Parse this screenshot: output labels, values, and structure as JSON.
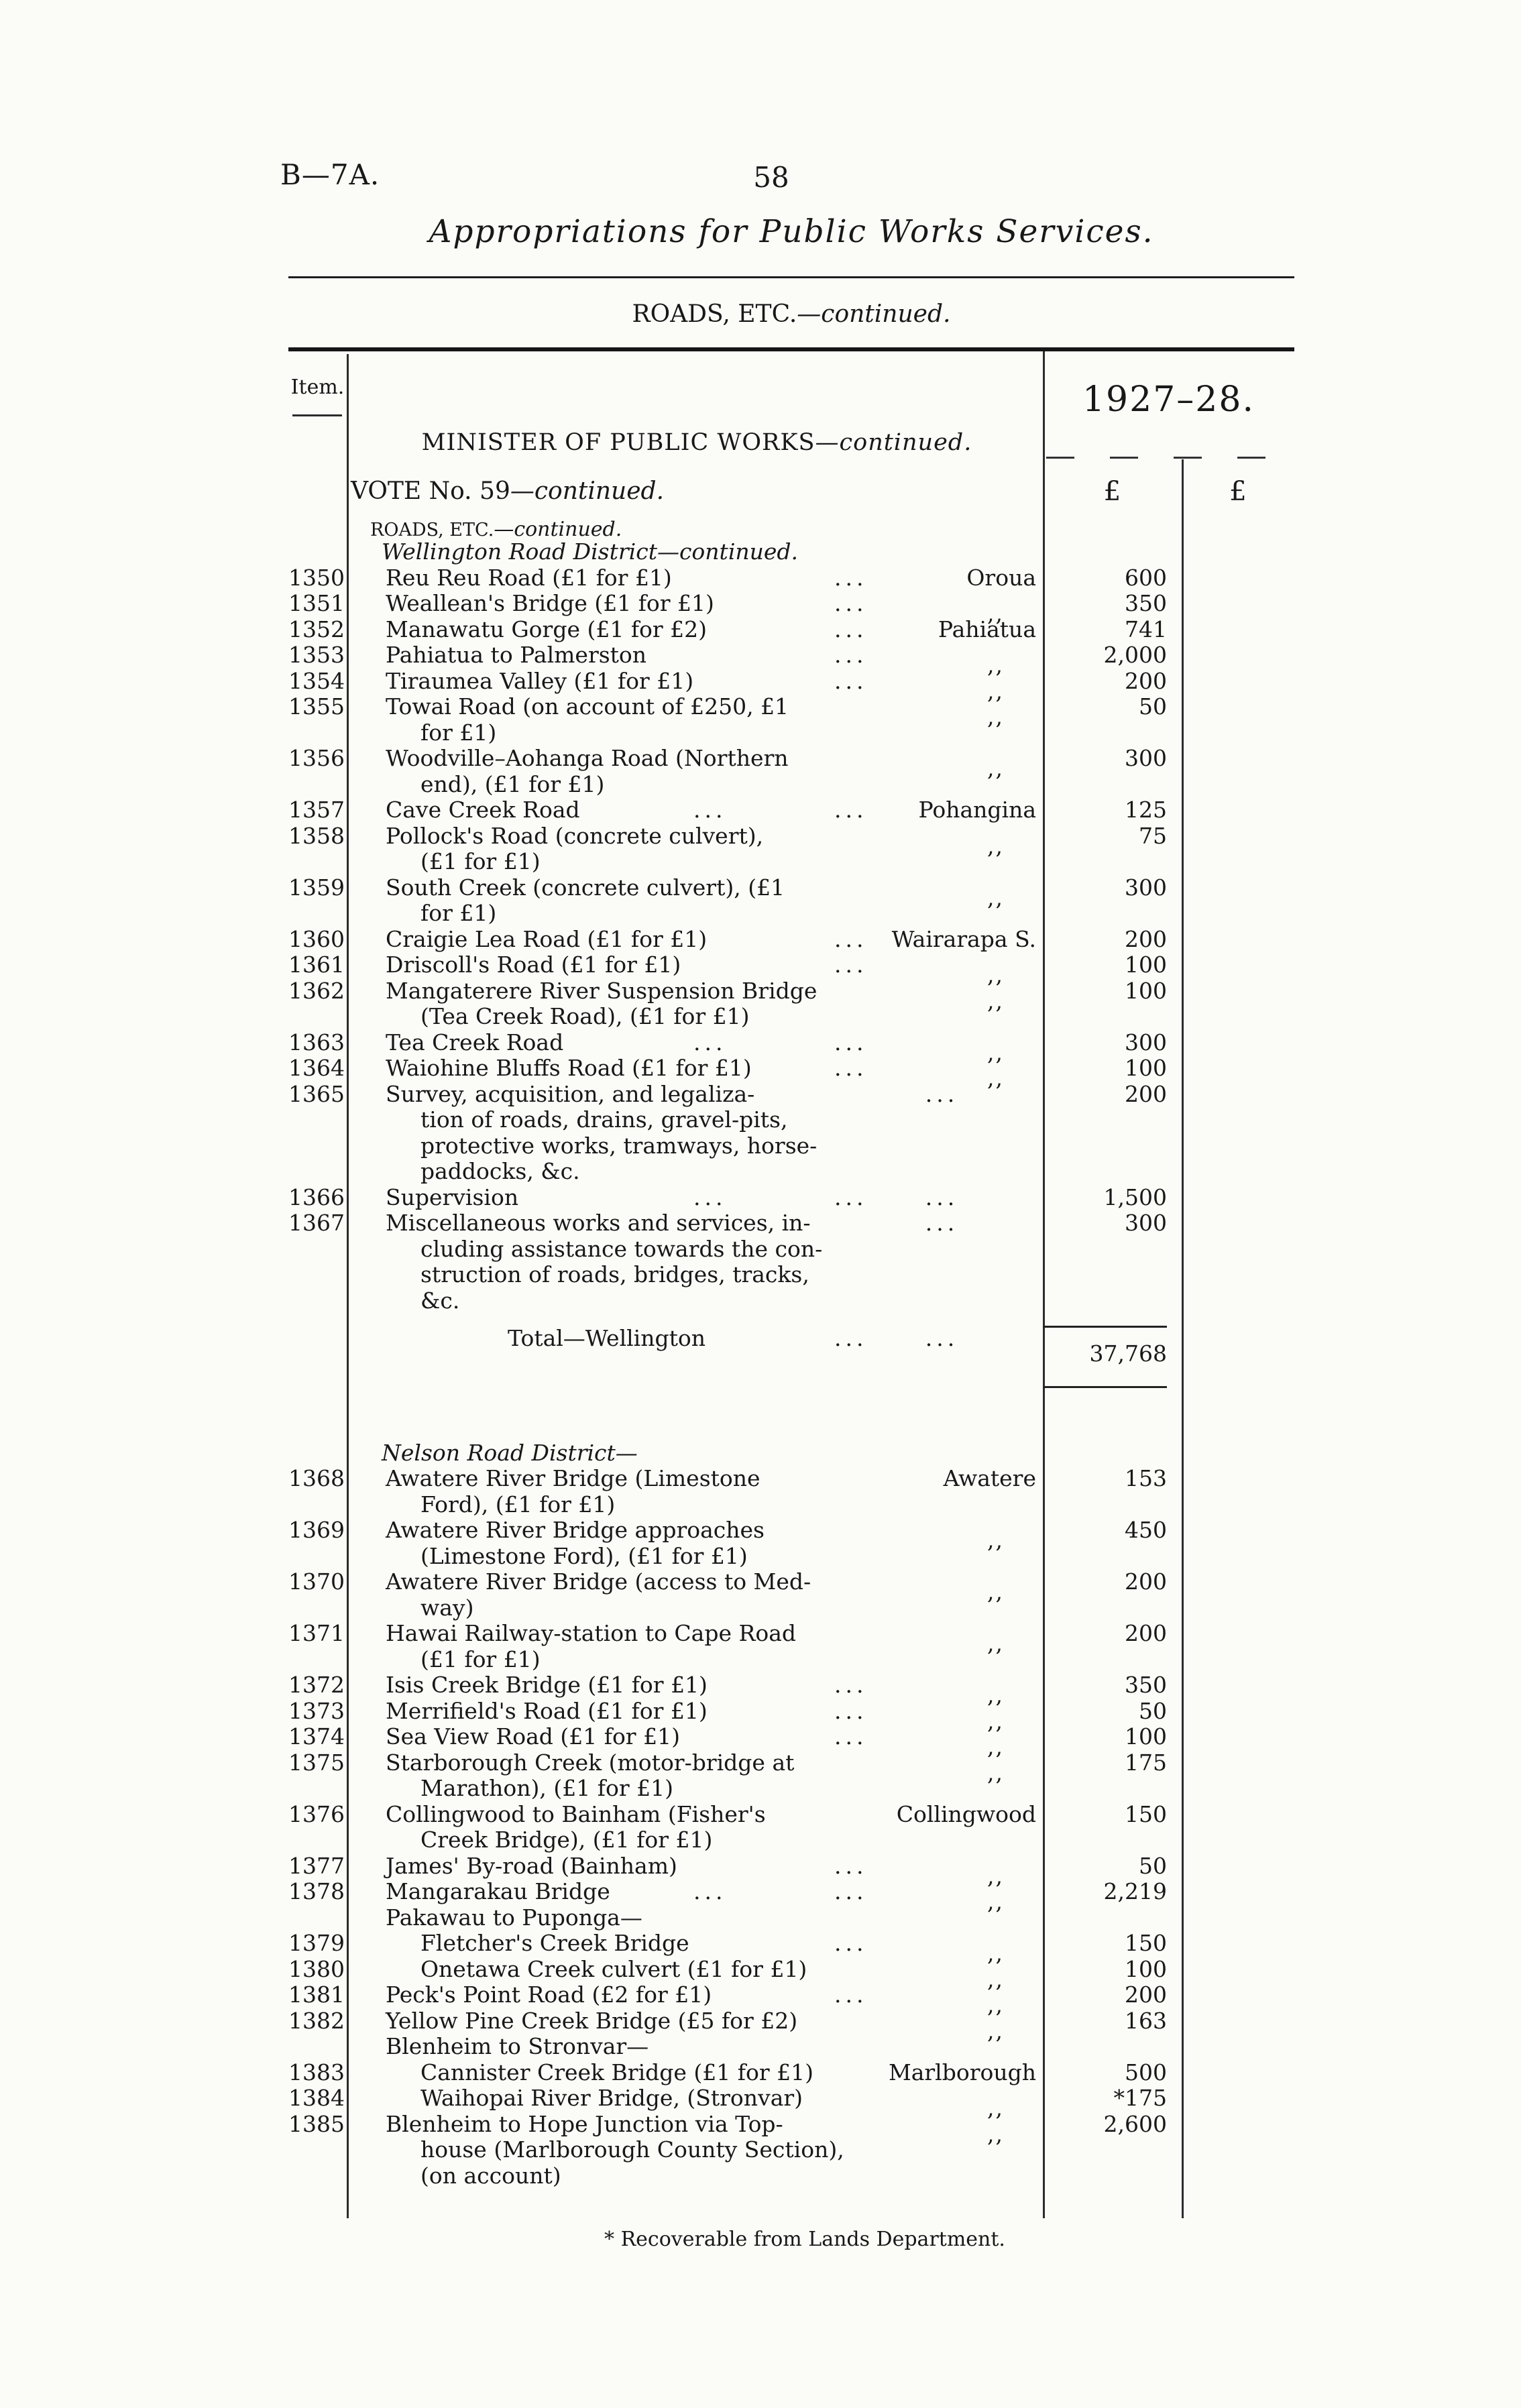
{
  "page": {
    "doc_ref": "B—7A.",
    "page_number": "58",
    "title": "Appropriations for Public Works Services.",
    "section_roman": "ROADS, ETC.",
    "section_italic": "—continued."
  },
  "table": {
    "item_header": "Item.",
    "year_header": "1927–28.",
    "minister_roman": "MINISTER OF PUBLIC WORKS",
    "minister_italic": "—continued.",
    "vote_roman": "VOTE No. 59",
    "vote_italic": "—continued.",
    "roads_roman": "ROADS, ETC.",
    "roads_italic": "—continued.",
    "currency_col1": "£",
    "currency_col2": "£",
    "footnote": "* Recoverable from Lands Department.",
    "rows": [
      {
        "type": "district",
        "text": "Wellington Road District—continued."
      },
      {
        "type": "item",
        "item": "1350",
        "lines": [
          "Reu Reu Road (£1 for £1)"
        ],
        "dots": 1,
        "loc": "Oroua",
        "amt": "600"
      },
      {
        "type": "item",
        "item": "1351",
        "lines": [
          "Weallean's Bridge (£1 for £1)"
        ],
        "dots": 1,
        "loc": ",,",
        "amt": "350"
      },
      {
        "type": "item",
        "item": "1352",
        "lines": [
          "Manawatu Gorge (£1 for £2)"
        ],
        "dots": 1,
        "loc": "Pahiatua",
        "amt": "741"
      },
      {
        "type": "item",
        "item": "1353",
        "lines": [
          "Pahiatua to Palmerston"
        ],
        "dots": 1,
        "loc": ",,",
        "amt": "2,000"
      },
      {
        "type": "item",
        "item": "1354",
        "lines": [
          "Tiraumea Valley (£1 for £1)"
        ],
        "dots": 1,
        "loc": ",,",
        "amt": "200"
      },
      {
        "type": "item",
        "item": "1355",
        "lines": [
          "Towai Road (on account of £250, £1",
          "for £1)"
        ],
        "dots": 0,
        "loc": ",,",
        "amt": "50"
      },
      {
        "type": "item",
        "item": "1356",
        "lines": [
          "Woodville–Aohanga Road (Northern",
          "end), (£1 for £1)"
        ],
        "dots": 0,
        "loc": ",,",
        "amt": "300"
      },
      {
        "type": "item",
        "item": "1357",
        "lines": [
          "Cave Creek Road"
        ],
        "dots": 2,
        "loc": "Pohangina",
        "amt": "125"
      },
      {
        "type": "item",
        "item": "1358",
        "lines": [
          "Pollock's Road (concrete culvert),",
          "(£1 for £1)"
        ],
        "dots": 0,
        "loc": ",,",
        "amt": "75"
      },
      {
        "type": "item",
        "item": "1359",
        "lines": [
          "South Creek (concrete culvert), (£1",
          "for £1)"
        ],
        "dots": 0,
        "loc": ",,",
        "amt": "300"
      },
      {
        "type": "item",
        "item": "1360",
        "lines": [
          "Craigie Lea Road (£1 for £1)"
        ],
        "dots": 1,
        "loc": "Wairarapa S.",
        "amt": "200"
      },
      {
        "type": "item",
        "item": "1361",
        "lines": [
          "Driscoll's Road (£1 for £1)"
        ],
        "dots": 1,
        "loc": ",,",
        "amt": "100"
      },
      {
        "type": "item",
        "item": "1362",
        "lines": [
          "Mangaterere River Suspension Bridge",
          "(Tea Creek Road), (£1 for £1)"
        ],
        "dots": 0,
        "loc": ",,",
        "amt": "100"
      },
      {
        "type": "item",
        "item": "1363",
        "lines": [
          "Tea Creek Road"
        ],
        "dots": 2,
        "loc": ",,",
        "amt": "300"
      },
      {
        "type": "item",
        "item": "1364",
        "lines": [
          "Waiohine Bluffs Road (£1 for £1)"
        ],
        "dots": 1,
        "loc": ",,",
        "amt": "100"
      },
      {
        "type": "item",
        "item": "1365",
        "lines": [
          "Survey, acquisition, and legaliza-",
          "tion of roads, drains, gravel-pits,",
          "protective works, tramways, horse-",
          "paddocks, &c."
        ],
        "dots": 0,
        "loc": "...",
        "amt": "200"
      },
      {
        "type": "item",
        "item": "1366",
        "lines": [
          "Supervision"
        ],
        "dots": 2,
        "loc": "...",
        "amt": "1,500"
      },
      {
        "type": "item",
        "item": "1367",
        "lines": [
          "Miscellaneous works and services, in-",
          "cluding assistance towards the con-",
          "struction of roads, bridges, tracks,",
          "&c."
        ],
        "dots": 0,
        "loc": "...",
        "amt": "300"
      },
      {
        "type": "total",
        "label": "Total—Wellington",
        "dots": 1,
        "loc": "...",
        "amt": "37,768"
      },
      {
        "type": "spacer"
      },
      {
        "type": "district",
        "text": "Nelson Road District—"
      },
      {
        "type": "item",
        "item": "1368",
        "lines": [
          "Awatere River Bridge (Limestone",
          "Ford), (£1 for £1)"
        ],
        "dots": 0,
        "loc": "Awatere",
        "amt": "153"
      },
      {
        "type": "item",
        "item": "1369",
        "lines": [
          "Awatere River Bridge approaches",
          "(Limestone Ford), (£1 for £1)"
        ],
        "dots": 0,
        "loc": ",,",
        "amt": "450"
      },
      {
        "type": "item",
        "item": "1370",
        "lines": [
          "Awatere River Bridge (access to Med-",
          "way)"
        ],
        "dots": 0,
        "loc": ",,",
        "amt": "200"
      },
      {
        "type": "item",
        "item": "1371",
        "lines": [
          "Hawai Railway-station to Cape Road",
          "(£1 for £1)"
        ],
        "dots": 0,
        "loc": ",,",
        "amt": "200"
      },
      {
        "type": "item",
        "item": "1372",
        "lines": [
          "Isis Creek Bridge (£1 for £1)"
        ],
        "dots": 1,
        "loc": ",,",
        "amt": "350"
      },
      {
        "type": "item",
        "item": "1373",
        "lines": [
          "Merrifield's Road (£1 for £1)"
        ],
        "dots": 1,
        "loc": ",,",
        "amt": "50"
      },
      {
        "type": "item",
        "item": "1374",
        "lines": [
          "Sea View Road (£1 for £1)"
        ],
        "dots": 1,
        "loc": ",,",
        "amt": "100"
      },
      {
        "type": "item",
        "item": "1375",
        "lines": [
          "Starborough Creek (motor-bridge at",
          "Marathon), (£1 for £1)"
        ],
        "dots": 0,
        "loc": ",,",
        "amt": "175"
      },
      {
        "type": "item",
        "item": "1376",
        "lines": [
          "Collingwood to Bainham (Fisher's",
          "Creek Bridge), (£1 for £1)"
        ],
        "dots": 0,
        "loc": "Collingwood",
        "amt": "150"
      },
      {
        "type": "item",
        "item": "1377",
        "lines": [
          "James' By-road (Bainham)"
        ],
        "dots": 1,
        "loc": ",,",
        "amt": "50"
      },
      {
        "type": "item",
        "item": "1378",
        "lines": [
          "Mangarakau Bridge"
        ],
        "dots": 2,
        "loc": ",,",
        "amt": "2,219"
      },
      {
        "type": "sub",
        "text": "Pakawau to Puponga—"
      },
      {
        "type": "item",
        "item": "1379",
        "indent": "g",
        "lines": [
          "Fletcher's Creek Bridge"
        ],
        "dots": 1,
        "loc": ",,",
        "amt": "150"
      },
      {
        "type": "item",
        "item": "1380",
        "indent": "g",
        "lines": [
          "Onetawa Creek culvert (£1 for £1)"
        ],
        "dots": 0,
        "loc": ",,",
        "amt": "100"
      },
      {
        "type": "item",
        "item": "1381",
        "lines": [
          "Peck's Point Road (£2 for £1)"
        ],
        "dots": 1,
        "loc": ",,",
        "amt": "200"
      },
      {
        "type": "item",
        "item": "1382",
        "lines": [
          "Yellow Pine Creek Bridge (£5 for £2)"
        ],
        "dots": 0,
        "loc": ",,",
        "amt": "163"
      },
      {
        "type": "sub",
        "text": "Blenheim to Stronvar—"
      },
      {
        "type": "item",
        "item": "1383",
        "indent": "g",
        "lines": [
          "Cannister Creek Bridge (£1 for £1)"
        ],
        "dots": 0,
        "loc": "Marlborough",
        "amt": "500"
      },
      {
        "type": "item",
        "item": "1384",
        "indent": "g",
        "lines": [
          "Waihopai River Bridge, (Stronvar)"
        ],
        "dots": 0,
        "loc": ",,",
        "amt": "*175"
      },
      {
        "type": "item",
        "item": "1385",
        "lines": [
          "Blenheim to Hope Junction via Top-",
          "house (Marlborough County Section),",
          "(on account)"
        ],
        "dots": 0,
        "loc": ",,",
        "amt": "2,600"
      }
    ]
  }
}
